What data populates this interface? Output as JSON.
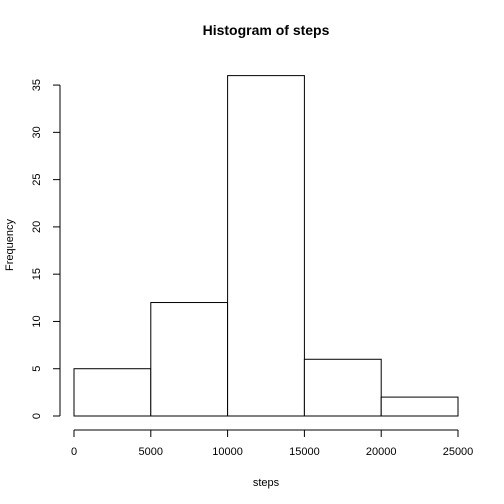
{
  "chart_data": {
    "type": "histogram",
    "title": "Histogram of steps",
    "xlabel": "steps",
    "ylabel": "Frequency",
    "bins": [
      {
        "start": 0,
        "end": 5000,
        "count": 5
      },
      {
        "start": 5000,
        "end": 10000,
        "count": 12
      },
      {
        "start": 10000,
        "end": 15000,
        "count": 36
      },
      {
        "start": 15000,
        "end": 20000,
        "count": 6
      },
      {
        "start": 20000,
        "end": 25000,
        "count": 2
      }
    ],
    "xlim": [
      0,
      25000
    ],
    "ylim": [
      0,
      37.44
    ],
    "x_ticks": [
      0,
      5000,
      10000,
      15000,
      20000,
      25000
    ],
    "y_ticks": [
      0,
      5,
      10,
      15,
      20,
      25,
      30,
      35
    ],
    "grid": false,
    "legend": "none"
  }
}
